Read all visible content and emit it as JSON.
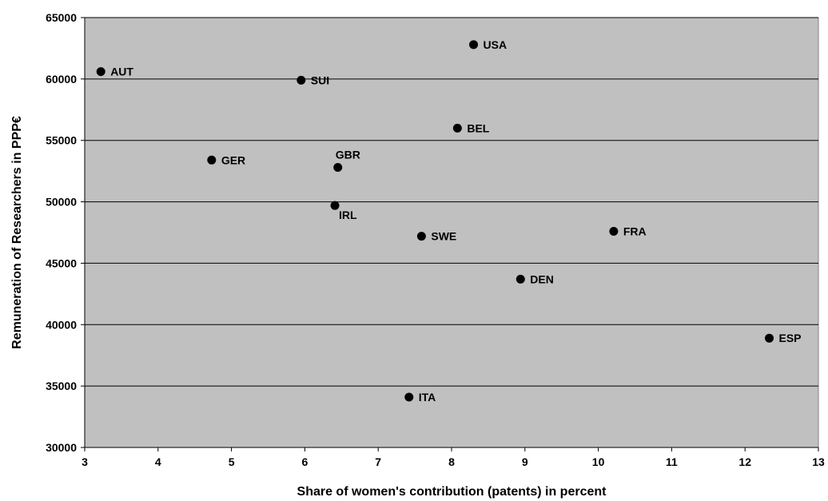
{
  "chart_data": {
    "type": "scatter",
    "title": "",
    "xlabel": "Share of women's contribution (patents) in percent",
    "ylabel": "Remuneration of Researchers in PPP€",
    "xlim": [
      3,
      13
    ],
    "ylim": [
      30000,
      65000
    ],
    "x_ticks": [
      "3",
      "4",
      "5",
      "6",
      "7",
      "8",
      "9",
      "10",
      "11",
      "12",
      "13"
    ],
    "y_ticks": [
      "30000",
      "35000",
      "40000",
      "45000",
      "50000",
      "55000",
      "60000",
      "65000"
    ],
    "grid": "horizontal",
    "plot_background": "#c0c0c0",
    "point_color": "#000000",
    "points": [
      {
        "label": "AUT",
        "x": 3.22,
        "y": 60600
      },
      {
        "label": "SUI",
        "x": 5.95,
        "y": 59900
      },
      {
        "label": "USA",
        "x": 8.3,
        "y": 62800
      },
      {
        "label": "BEL",
        "x": 8.08,
        "y": 56000
      },
      {
        "label": "GER",
        "x": 4.73,
        "y": 53400
      },
      {
        "label": "GBR",
        "x": 6.45,
        "y": 52800
      },
      {
        "label": "IRL",
        "x": 6.41,
        "y": 49700
      },
      {
        "label": "SWE",
        "x": 7.59,
        "y": 47200
      },
      {
        "label": "FRA",
        "x": 10.21,
        "y": 47600
      },
      {
        "label": "DEN",
        "x": 8.94,
        "y": 43700
      },
      {
        "label": "ESP",
        "x": 12.33,
        "y": 38900
      },
      {
        "label": "ITA",
        "x": 7.42,
        "y": 34100
      }
    ]
  }
}
